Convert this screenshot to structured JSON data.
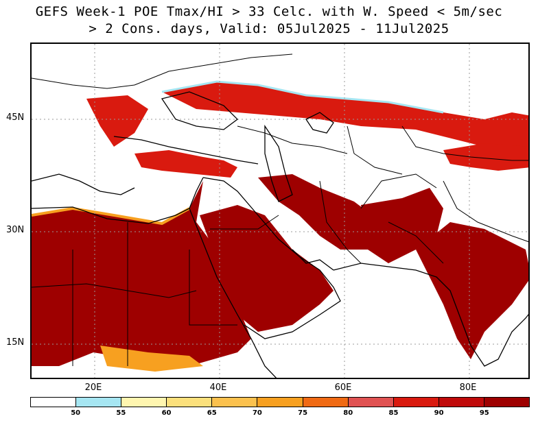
{
  "title_line1": "GEFS Week-1 POE Tmax/HI > 33 Celc. with W. Speed < 5m/sec",
  "title_line2": "> 2 Cons. days, Valid: 05Jul2025 - 11Jul2025",
  "lat_labels": [
    "45N",
    "30N",
    "15N"
  ],
  "lon_labels": [
    "20E",
    "40E",
    "60E",
    "80E"
  ],
  "legend": {
    "colors": [
      "#ffffff",
      "#a6e6f2",
      "#fff6b0",
      "#fbe07c",
      "#fbc14e",
      "#f7a020",
      "#f06a14",
      "#e05252",
      "#d91a0f",
      "#c00a0a",
      "#9e0000"
    ],
    "labels": [
      "50",
      "55",
      "60",
      "65",
      "70",
      "75",
      "80",
      "85",
      "90",
      "95"
    ]
  },
  "colors": {
    "high": "#9e0000",
    "mid": "#d91a0f",
    "low": "#f06a14",
    "edge": "#a6e6f2"
  }
}
